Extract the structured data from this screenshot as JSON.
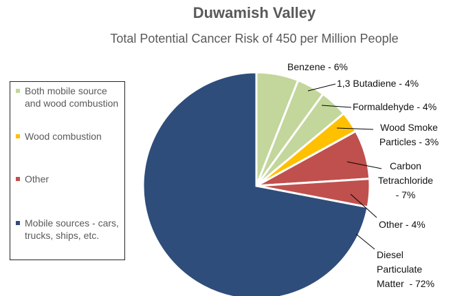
{
  "chart_data": {
    "type": "pie",
    "title": "Duwamish Valley",
    "subtitle": "Total Potential Cancer Risk of 450 per Million People",
    "values": [
      6,
      4,
      4,
      3,
      7,
      4,
      72
    ],
    "value_labels": [
      "Benzene - 6%",
      "1,3 Butadiene - 4%",
      "Formaldehyde - 4%",
      "Wood Smoke\nParticles - 3%",
      "Carbon\nTetrachloride\n- 7%",
      "Other - 4%",
      "Diesel\nParticulate\nMatter  - 72%"
    ],
    "colors": [
      "#c3d69b",
      "#c3d69b",
      "#c3d69b",
      "#ffc000",
      "#c0504d",
      "#c0504d",
      "#2e4d7b"
    ],
    "legend": [
      {
        "label": "Both mobile source and wood combustion",
        "color": "#c3d69b"
      },
      {
        "label": "Wood combustion",
        "color": "#ffc000"
      },
      {
        "label": "Other",
        "color": "#c0504d"
      },
      {
        "label": "Mobile sources - cars, trucks, ships, etc.",
        "color": "#2e4d7b"
      }
    ]
  }
}
